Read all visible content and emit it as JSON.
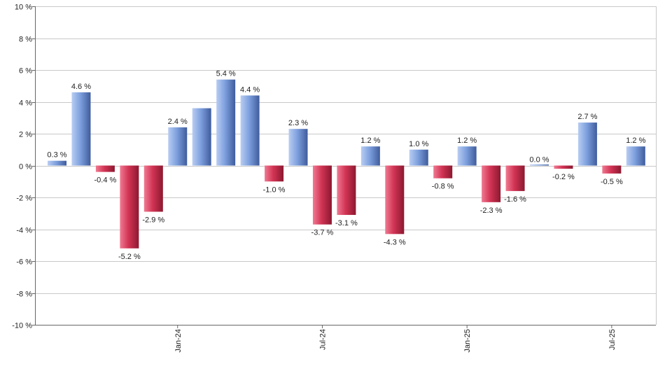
{
  "chart_data": {
    "type": "bar",
    "title": "",
    "xlabel": "",
    "ylabel": "",
    "ylim": [
      -10,
      10
    ],
    "y_ticks": [
      10,
      8,
      6,
      4,
      2,
      0,
      -2,
      -4,
      -6,
      -8,
      -10
    ],
    "y_tick_labels": [
      "10 %",
      "8 %",
      "6 %",
      "4 %",
      "2 %",
      "0 %",
      "-2 %",
      "-4 %",
      "-6 %",
      "-8 %",
      "-10 %"
    ],
    "values": [
      0.3,
      4.6,
      -0.4,
      -5.2,
      -2.9,
      2.4,
      3.6,
      5.4,
      4.4,
      -1.0,
      2.3,
      -3.7,
      -3.1,
      1.2,
      -4.3,
      1.0,
      -0.8,
      1.2,
      -2.3,
      -1.6,
      0.0,
      -0.2,
      2.7,
      -0.5,
      1.2
    ],
    "value_labels": [
      "0.3 %",
      "4.6 %",
      "-0.4 %",
      "-5.2 %",
      "-2.9 %",
      "2.4 %",
      "3.6 %",
      "5.4 %",
      "4.4 %",
      "-1.0 %",
      "2.3 %",
      "-3.7 %",
      "-3.1 %",
      "1.2 %",
      "-4.3 %",
      "1.0 %",
      "-0.8 %",
      "1.2 %",
      "-2.3 %",
      "-1.6 %",
      "0.0 %",
      "-0.2 %",
      "2.7 %",
      "-0.5 %",
      "1.2 %"
    ],
    "label_visible": [
      true,
      true,
      true,
      true,
      true,
      true,
      false,
      true,
      true,
      true,
      true,
      true,
      true,
      true,
      true,
      true,
      true,
      true,
      true,
      true,
      true,
      true,
      true,
      true,
      true
    ],
    "x_tick_labels": [
      {
        "bar_index": 5,
        "label": "Jan-24"
      },
      {
        "bar_index": 11,
        "label": "Jul-24"
      },
      {
        "bar_index": 17,
        "label": "Jan-25"
      },
      {
        "bar_index": 23,
        "label": "Jul-25"
      }
    ],
    "grid": true,
    "positive_color": "#6f93d6",
    "negative_color": "#cc2a4c"
  }
}
